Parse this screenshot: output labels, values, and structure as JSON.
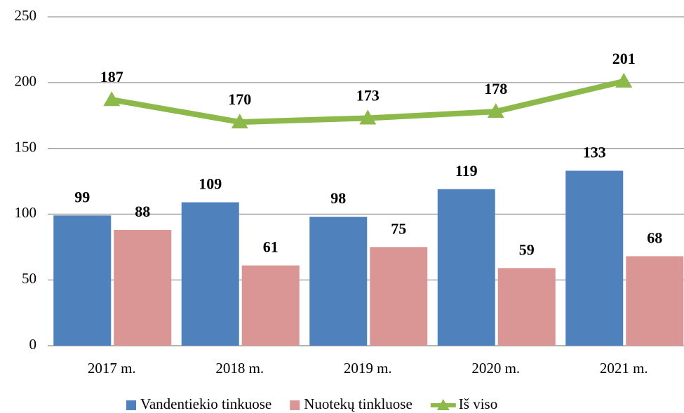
{
  "chart_data": {
    "type": "bar-line",
    "categories": [
      "2017 m.",
      "2018 m.",
      "2019 m.",
      "2020 m.",
      "2021 m."
    ],
    "series": [
      {
        "name": "Vandentiekio tinkuose",
        "color": "#4f81bd",
        "type": "bar",
        "values": [
          99,
          109,
          98,
          119,
          133
        ]
      },
      {
        "name": "Nuotekų tinkluose",
        "color": "#d99694",
        "type": "bar",
        "values": [
          88,
          61,
          75,
          59,
          68
        ]
      },
      {
        "name": "Iš viso",
        "color": "#8db94a",
        "type": "line",
        "values": [
          187,
          170,
          173,
          178,
          201
        ]
      }
    ],
    "ylim": [
      0,
      250
    ],
    "yticks": [
      0,
      50,
      100,
      150,
      200,
      250
    ],
    "grid": true,
    "legend": "bottom"
  }
}
